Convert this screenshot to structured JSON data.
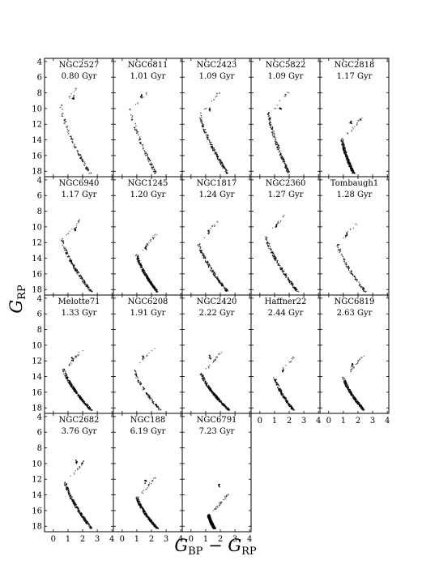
{
  "chart_data": {
    "type": "scatter",
    "xlabel": "G_BP − G_RP",
    "ylabel": "G_RP",
    "xlim": [
      -0.6,
      4.1
    ],
    "ylim": [
      18.7,
      3.6
    ],
    "y_inverted": true,
    "x_ticks": [
      0,
      1,
      2,
      3,
      4
    ],
    "y_ticks": [
      4,
      6,
      8,
      10,
      12,
      14,
      16,
      18
    ],
    "grid": false,
    "panels": [
      {
        "name": "NGC2527",
        "age": "0.80 Gyr",
        "turnoff": [
          0.5,
          9.5
        ],
        "end": [
          2.5,
          18.3
        ],
        "density": "sparse",
        "clump": [
          1.35,
          8.6
        ]
      },
      {
        "name": "NGC6811",
        "age": "1.01 Gyr",
        "turnoff": [
          0.6,
          10.0
        ],
        "end": [
          2.3,
          18.3
        ],
        "density": "sparse",
        "clump": [
          1.3,
          8.4
        ]
      },
      {
        "name": "NGC2423",
        "age": "1.09 Gyr",
        "turnoff": [
          0.6,
          10.5
        ],
        "end": [
          2.5,
          18.3
        ],
        "density": "medium",
        "clump": [
          1.3,
          10.2
        ]
      },
      {
        "name": "NGC5822",
        "age": "1.09 Gyr",
        "turnoff": [
          0.6,
          10.5
        ],
        "end": [
          2.0,
          18.3
        ],
        "density": "medium",
        "clump": [
          1.4,
          10.0
        ]
      },
      {
        "name": "NGC2818",
        "age": "1.17 Gyr",
        "turnoff": [
          0.9,
          13.8
        ],
        "end": [
          1.7,
          18.3
        ],
        "density": "dense",
        "clump": [
          1.5,
          11.8
        ]
      },
      {
        "name": "NGC6940",
        "age": "1.17 Gyr",
        "turnoff": [
          0.6,
          11.5
        ],
        "end": [
          2.6,
          18.3
        ],
        "density": "medium",
        "clump": [
          1.5,
          10.3
        ]
      },
      {
        "name": "NGC1245",
        "age": "1.20 Gyr",
        "turnoff": [
          1.0,
          13.5
        ],
        "end": [
          2.4,
          18.3
        ],
        "density": "dense",
        "clump": [
          1.6,
          12.7
        ]
      },
      {
        "name": "NGC1817",
        "age": "1.24 Gyr",
        "turnoff": [
          0.5,
          11.8
        ],
        "end": [
          2.5,
          18.3
        ],
        "density": "medium",
        "clump": [
          1.2,
          10.7
        ]
      },
      {
        "name": "NGC2360",
        "age": "1.27 Gyr",
        "turnoff": [
          0.4,
          11.0
        ],
        "end": [
          2.6,
          18.3
        ],
        "density": "medium",
        "clump": [
          1.1,
          9.8
        ]
      },
      {
        "name": "Tombaugh1",
        "age": "1.28 Gyr",
        "turnoff": [
          0.6,
          12.0
        ],
        "end": [
          2.5,
          18.3
        ],
        "density": "sparse",
        "clump": [
          1.2,
          11.0
        ]
      },
      {
        "name": "Melotte71",
        "age": "1.33 Gyr",
        "turnoff": [
          0.7,
          13.0
        ],
        "end": [
          2.6,
          18.3
        ],
        "density": "dense",
        "clump": [
          1.3,
          11.8
        ]
      },
      {
        "name": "NGC6208",
        "age": "1.91 Gyr",
        "turnoff": [
          0.8,
          13.0
        ],
        "end": [
          2.6,
          18.3
        ],
        "density": "sparse",
        "clump": [
          1.4,
          11.6
        ]
      },
      {
        "name": "NGC2420",
        "age": "2.22 Gyr",
        "turnoff": [
          0.7,
          13.5
        ],
        "end": [
          2.6,
          18.3
        ],
        "density": "dense",
        "clump": [
          1.3,
          11.5
        ]
      },
      {
        "name": "Haffner22",
        "age": "2.44 Gyr",
        "turnoff": [
          1.0,
          14.0
        ],
        "end": [
          2.3,
          18.3
        ],
        "density": "medium",
        "clump": [
          1.6,
          13.2
        ]
      },
      {
        "name": "NGC6819",
        "age": "2.63 Gyr",
        "turnoff": [
          1.0,
          14.0
        ],
        "end": [
          2.4,
          18.3
        ],
        "density": "dense",
        "clump": [
          1.6,
          12.6
        ]
      },
      {
        "name": "NGC2682",
        "age": "3.76 Gyr",
        "turnoff": [
          0.8,
          12.2
        ],
        "end": [
          2.6,
          18.3
        ],
        "density": "dense",
        "clump": [
          1.6,
          9.8
        ]
      },
      {
        "name": "NGC188",
        "age": "6.19 Gyr",
        "turnoff": [
          1.0,
          14.2
        ],
        "end": [
          2.4,
          18.3
        ],
        "density": "dense",
        "clump": [
          1.6,
          12.3
        ]
      },
      {
        "name": "NGC6791",
        "age": "7.23 Gyr",
        "turnoff": [
          1.2,
          16.5
        ],
        "end": [
          1.6,
          18.3
        ],
        "density": "very-dense",
        "clump": [
          1.9,
          12.8
        ]
      }
    ]
  }
}
